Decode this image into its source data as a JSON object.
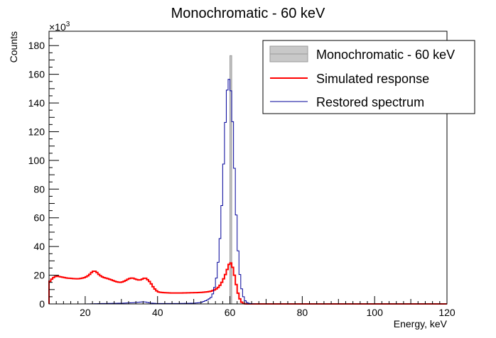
{
  "chart_data": {
    "type": "histogram",
    "title": "Monochromatic - 60 keV",
    "xlabel": "Energy, keV",
    "ylabel": "Counts",
    "y_multiplier_label": "×10",
    "y_multiplier_exp": "3",
    "xlim": [
      10,
      120
    ],
    "ylim": [
      0,
      190
    ],
    "x_ticks": [
      20,
      40,
      60,
      80,
      100,
      120
    ],
    "y_ticks": [
      0,
      20,
      40,
      60,
      80,
      100,
      120,
      140,
      160,
      180
    ],
    "bin_width": 0.5,
    "legend_position": "top-right",
    "colors": {
      "monochromatic_fill": "#c8c8c8",
      "monochromatic_line": "#9a9a9a",
      "simulated": "#ff0000",
      "restored": "#000099"
    },
    "series": [
      {
        "name": "Monochromatic - 60 keV",
        "style": "bar",
        "bins": [
          [
            60.0,
            173
          ]
        ]
      },
      {
        "name": "Simulated response",
        "style": "step",
        "points": [
          [
            10,
            15
          ],
          [
            11,
            18
          ],
          [
            12,
            19.5
          ],
          [
            13,
            19
          ],
          [
            14,
            18.5
          ],
          [
            15,
            18
          ],
          [
            16,
            17.8
          ],
          [
            17,
            17.6
          ],
          [
            18,
            17.5
          ],
          [
            19,
            17.8
          ],
          [
            20,
            18.5
          ],
          [
            21,
            20
          ],
          [
            22,
            22.5
          ],
          [
            22.5,
            23
          ],
          [
            23,
            22.5
          ],
          [
            24,
            20
          ],
          [
            25,
            18.5
          ],
          [
            26,
            17.8
          ],
          [
            27,
            17
          ],
          [
            28,
            16
          ],
          [
            29,
            15.2
          ],
          [
            30,
            15
          ],
          [
            31,
            16
          ],
          [
            32,
            17.5
          ],
          [
            33,
            18.2
          ],
          [
            34,
            17.2
          ],
          [
            35,
            16.5
          ],
          [
            36,
            17.5
          ],
          [
            36.5,
            18.2
          ],
          [
            37,
            17.5
          ],
          [
            38,
            15
          ],
          [
            39,
            11
          ],
          [
            40,
            8.5
          ],
          [
            41,
            8
          ],
          [
            42,
            7.8
          ],
          [
            44,
            7.6
          ],
          [
            46,
            7.6
          ],
          [
            48,
            7.7
          ],
          [
            50,
            7.8
          ],
          [
            52,
            8
          ],
          [
            53,
            8.2
          ],
          [
            54,
            8.5
          ],
          [
            55,
            9
          ],
          [
            56,
            10
          ],
          [
            57,
            12
          ],
          [
            58,
            16
          ],
          [
            59,
            22
          ],
          [
            59.5,
            26
          ],
          [
            60,
            29
          ],
          [
            60.5,
            28
          ],
          [
            61,
            23
          ],
          [
            61.5,
            17
          ],
          [
            62,
            10
          ],
          [
            62.5,
            5
          ],
          [
            63,
            2
          ],
          [
            63.5,
            0.5
          ],
          [
            64,
            0.1
          ],
          [
            65,
            0
          ],
          [
            120,
            0
          ]
        ]
      },
      {
        "name": "Restored spectrum",
        "style": "step",
        "points": [
          [
            10,
            0
          ],
          [
            20,
            0
          ],
          [
            25,
            0.3
          ],
          [
            30,
            0.5
          ],
          [
            33,
            0.8
          ],
          [
            35,
            1.2
          ],
          [
            36,
            1.5
          ],
          [
            37,
            1.2
          ],
          [
            38,
            0.6
          ],
          [
            40,
            0.3
          ],
          [
            45,
            0.3
          ],
          [
            50,
            0.5
          ],
          [
            52,
            1
          ],
          [
            53,
            2
          ],
          [
            54,
            3
          ],
          [
            55,
            5
          ],
          [
            55.5,
            9
          ],
          [
            56,
            14
          ],
          [
            56.5,
            22
          ],
          [
            57,
            36
          ],
          [
            57.5,
            55
          ],
          [
            58,
            82
          ],
          [
            58.5,
            113
          ],
          [
            59,
            140
          ],
          [
            59.5,
            158
          ],
          [
            60,
            155
          ],
          [
            60.5,
            142
          ],
          [
            61,
            112
          ],
          [
            61.5,
            77
          ],
          [
            62,
            47
          ],
          [
            62.5,
            27
          ],
          [
            63,
            14
          ],
          [
            63.5,
            7
          ],
          [
            64,
            3
          ],
          [
            64.5,
            1.5
          ],
          [
            65,
            0.5
          ],
          [
            66,
            0.2
          ],
          [
            67,
            0
          ],
          [
            120,
            0
          ]
        ]
      }
    ]
  }
}
